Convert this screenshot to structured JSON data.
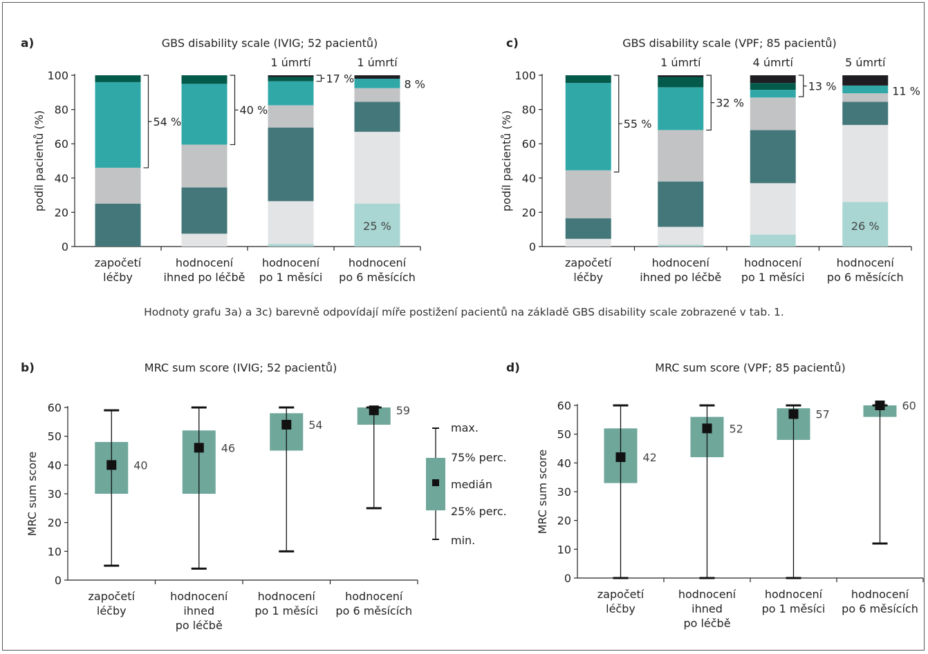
{
  "colors": {
    "gbs0": "#a9d6d2",
    "gbs1": "#e3e4e6",
    "gbs2": "#44777a",
    "gbs3": "#c2c3c5",
    "gbs4": "#31a8a8",
    "gbs5": "#035a4a",
    "gbs6": "#1d1d22",
    "box": "#6fa79b",
    "axis": "#222222"
  },
  "caption": "Hodnoty grafu 3a) a 3c) barevně odpovídají míře postižení pacientů na základě GBS disability scale zobrazené v tab. 1.",
  "legend": {
    "max": "max.",
    "p75": "75% perc.",
    "median": "medián",
    "p25": "25% perc.",
    "min": "min."
  },
  "chart_data": [
    {
      "panel": "a)",
      "type": "bar",
      "stacked": true,
      "title": "GBS disability scale (IVIG; 52 pacientů)",
      "ylabel": "podíl pacientů (%)",
      "xlabel": "",
      "ylim": [
        0,
        100
      ],
      "yticks": [
        "0",
        "20",
        "40",
        "60",
        "80",
        "100"
      ],
      "categories": [
        [
          "započetí",
          "léčby"
        ],
        [
          "hodnocení",
          "ihned po léčbě"
        ],
        [
          "hodnocení",
          "po 1 měsíci"
        ],
        [
          "hodnocení",
          "po 6 měsících"
        ]
      ],
      "series": [
        {
          "values": [
            0,
            0,
            1.5,
            25
          ]
        },
        {
          "values": [
            0,
            7.5,
            25,
            42
          ]
        },
        {
          "values": [
            25,
            27,
            43,
            17.5
          ]
        },
        {
          "values": [
            21,
            25,
            13,
            8
          ]
        },
        {
          "values": [
            50,
            35.5,
            14,
            5.5
          ]
        },
        {
          "values": [
            4,
            5,
            2.5,
            0
          ]
        },
        {
          "values": [
            0,
            0,
            1,
            2
          ]
        }
      ],
      "deaths": [
        "",
        "",
        "1 úmrtí",
        "1 úmrtí"
      ],
      "brackets": [
        {
          "category": 0,
          "from": 46,
          "to": 100,
          "label": "54 %"
        },
        {
          "category": 1,
          "from": 59.5,
          "to": 100,
          "label": "40 %"
        },
        {
          "category": 2,
          "from": 96.5,
          "to": 100,
          "label": "17 %"
        },
        {
          "category": 3,
          "from": 99,
          "to": 99,
          "label": "8 %"
        }
      ],
      "inner_labels": [
        {
          "category": 3,
          "value": 12.5,
          "label": "25 %"
        }
      ]
    },
    {
      "panel": "c)",
      "type": "bar",
      "stacked": true,
      "title": "GBS disability scale (VPF; 85 pacientů)",
      "ylabel": "podíl pacientů (%)",
      "xlabel": "",
      "ylim": [
        0,
        100
      ],
      "yticks": [
        "0",
        "20",
        "40",
        "60",
        "80",
        "100"
      ],
      "categories": [
        [
          "započetí",
          "léčby"
        ],
        [
          "hodnocení",
          "ihned po léčbě"
        ],
        [
          "hodnocení",
          "po 1 měsíci"
        ],
        [
          "hodnocení",
          "po 6 měsících"
        ]
      ],
      "series": [
        {
          "values": [
            0,
            1,
            7,
            26
          ]
        },
        {
          "values": [
            4.5,
            10.5,
            30,
            45
          ]
        },
        {
          "values": [
            12,
            26.5,
            31,
            13.5
          ]
        },
        {
          "values": [
            28,
            30,
            19,
            5
          ]
        },
        {
          "values": [
            51,
            25,
            4.5,
            4.5
          ]
        },
        {
          "values": [
            4.5,
            6,
            4,
            0
          ]
        },
        {
          "values": [
            0,
            1,
            4.5,
            6
          ]
        }
      ],
      "deaths": [
        "",
        "1 úmrtí",
        "4 úmrtí",
        "5 úmrtí"
      ],
      "brackets": [
        {
          "category": 0,
          "from": 43.5,
          "to": 100,
          "label": "55 %"
        },
        {
          "category": 1,
          "from": 68,
          "to": 100,
          "label": "32 %"
        },
        {
          "category": 2,
          "from": 87.5,
          "to": 100,
          "label": "13 %"
        },
        {
          "category": 3,
          "from": 95,
          "to": 95,
          "label": "11 %"
        }
      ],
      "inner_labels": [
        {
          "category": 3,
          "value": 12.5,
          "label": "26 %"
        }
      ]
    },
    {
      "panel": "b)",
      "type": "box",
      "title": "MRC sum score (IVIG; 52 pacientů)",
      "ylabel": "MRC sum score",
      "xlabel": "",
      "ylim": [
        0,
        60
      ],
      "yticks": [
        "0",
        "10",
        "20",
        "30",
        "40",
        "50",
        "60"
      ],
      "categories": [
        [
          "započetí",
          "léčby"
        ],
        [
          "hodnocení",
          "ihned",
          "po léčbě"
        ],
        [
          "hodnocení",
          "po 1 měsíci"
        ],
        [
          "hodnocení",
          "po 6 měsících"
        ]
      ],
      "min": [
        5,
        4,
        10,
        25
      ],
      "p25": [
        30,
        30,
        45,
        54
      ],
      "median": [
        40,
        46,
        54,
        59
      ],
      "p75": [
        48,
        52,
        58,
        60
      ],
      "max": [
        59,
        60,
        60,
        60
      ],
      "median_labels": [
        "40",
        "46",
        "54",
        "59"
      ]
    },
    {
      "panel": "d)",
      "type": "box",
      "title": "MRC sum score (VPF; 85 pacientů)",
      "ylabel": "MRC sum score",
      "xlabel": "",
      "ylim": [
        0,
        60
      ],
      "yticks": [
        "0",
        "10",
        "20",
        "30",
        "40",
        "50",
        "60"
      ],
      "categories": [
        [
          "započetí",
          "léčby"
        ],
        [
          "hodnocení",
          "ihned",
          "po léčbě"
        ],
        [
          "hodnocení",
          "po 1 měsíci"
        ],
        [
          "hodnocení",
          "po 6 měsících"
        ]
      ],
      "min": [
        0,
        0,
        0,
        12
      ],
      "p25": [
        33,
        42,
        48,
        56
      ],
      "median": [
        42,
        52,
        57,
        60
      ],
      "p75": [
        52,
        56,
        59,
        60
      ],
      "max": [
        60,
        60,
        60,
        60
      ],
      "median_labels": [
        "42",
        "52",
        "57",
        "60"
      ]
    }
  ]
}
